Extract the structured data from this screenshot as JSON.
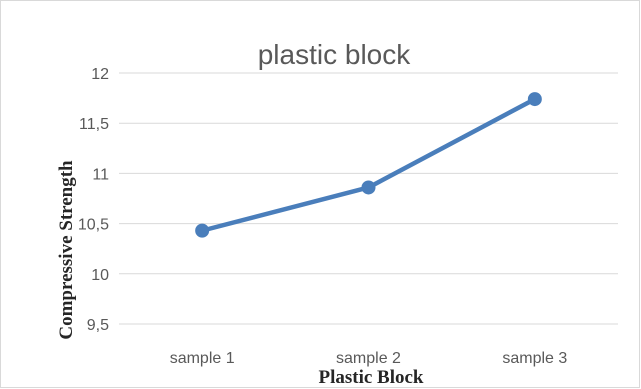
{
  "chart_data": {
    "type": "line",
    "title": "plastic block",
    "xlabel": "Plastic Block",
    "ylabel": "Compressive Strength",
    "categories": [
      "sample 1",
      "sample 2",
      "sample 3"
    ],
    "series": [
      {
        "values": [
          10.43,
          10.86,
          11.74
        ]
      }
    ],
    "ylim": [
      9.5,
      12
    ],
    "yticks": [
      "9,5",
      "10",
      "10,5",
      "11",
      "11,5",
      "12"
    ],
    "grid": true,
    "legend": "none",
    "colors": {
      "line": "#4a7ebb",
      "grid": "#d9d9d9",
      "border": "#d9d9d9",
      "text": "#595959"
    }
  }
}
